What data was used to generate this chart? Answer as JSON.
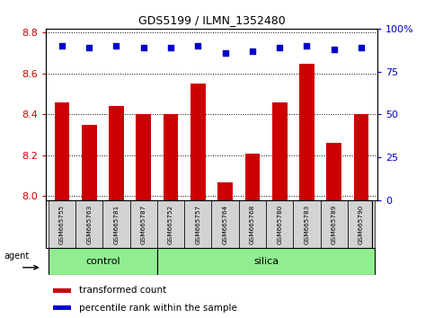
{
  "title": "GDS5199 / ILMN_1352480",
  "samples": [
    "GSM665755",
    "GSM665763",
    "GSM665781",
    "GSM665787",
    "GSM665752",
    "GSM665757",
    "GSM665764",
    "GSM665768",
    "GSM665780",
    "GSM665783",
    "GSM665789",
    "GSM665790"
  ],
  "transformed_count": [
    8.46,
    8.35,
    8.44,
    8.4,
    8.4,
    8.55,
    8.07,
    8.21,
    8.46,
    8.65,
    8.26,
    8.4
  ],
  "percentile_rank": [
    90,
    89,
    90,
    89,
    89,
    90,
    86,
    87,
    89,
    90,
    88,
    89
  ],
  "control_count": 4,
  "silica_count": 8,
  "agent_label": "agent",
  "ylim_left": [
    7.98,
    8.82
  ],
  "ylim_right": [
    0,
    100
  ],
  "yticks_left": [
    8.0,
    8.2,
    8.4,
    8.6,
    8.8
  ],
  "yticks_right": [
    0,
    25,
    50,
    75,
    100
  ],
  "ytick_labels_right": [
    "0",
    "25",
    "50",
    "75",
    "100%"
  ],
  "bar_color": "#cc0000",
  "dot_color": "#0000cc",
  "bar_width": 0.55,
  "group_fill": "#90ee90",
  "plot_bg_color": "#ffffff",
  "sample_box_color": "#d3d3d3",
  "left_tick_color": "#cc0000",
  "right_tick_color": "#0000cc",
  "legend_red_label": "transformed count",
  "legend_blue_label": "percentile rank within the sample"
}
